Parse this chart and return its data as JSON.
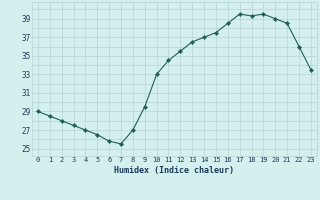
{
  "x": [
    0,
    1,
    2,
    3,
    4,
    5,
    6,
    7,
    8,
    9,
    10,
    11,
    12,
    13,
    14,
    15,
    16,
    17,
    18,
    19,
    20,
    21,
    22,
    23
  ],
  "y": [
    29.0,
    28.5,
    28.0,
    27.5,
    27.0,
    26.5,
    25.8,
    25.5,
    27.0,
    29.5,
    33.0,
    34.5,
    35.5,
    36.5,
    37.0,
    37.5,
    38.5,
    39.5,
    39.3,
    39.5,
    39.0,
    38.5,
    36.0,
    33.5
  ],
  "line_color": "#206050",
  "marker": "D",
  "marker_size": 2.2,
  "bg_color": "#d4f0ee",
  "xlabel": "Humidex (Indice chaleur)",
  "ylabel_ticks": [
    25,
    27,
    29,
    31,
    33,
    35,
    37,
    39
  ],
  "ylim": [
    24.2,
    40.8
  ],
  "xlim": [
    -0.5,
    23.5
  ],
  "tick_label_color": "#1a3a5a",
  "grid_color": "#b8d4d0",
  "xlabel_fontsize": 6.0,
  "xtick_fontsize": 5.0,
  "ytick_fontsize": 5.5
}
